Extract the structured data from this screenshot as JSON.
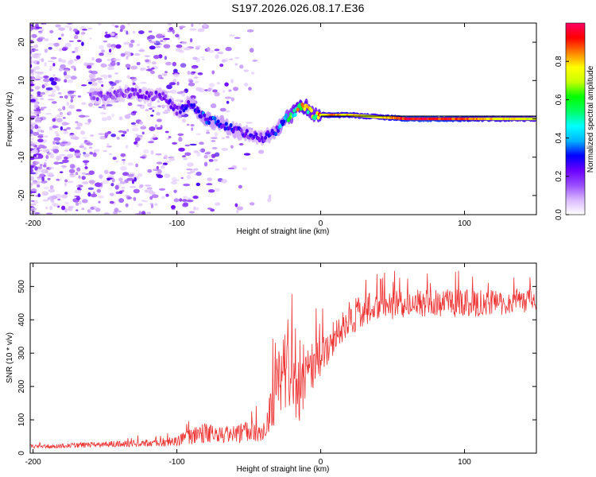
{
  "figure": {
    "title": "S197.2026.026.08.17.E36"
  },
  "chart_data": [
    {
      "type": "heatmap",
      "xlabel": "Height of straight line (km)",
      "ylabel": "Frequency (Hz)",
      "xlim": [
        -202,
        150
      ],
      "ylim": [
        -25,
        25
      ],
      "xticks": [
        -200,
        -100,
        0,
        100
      ],
      "yticks": [
        -20,
        -10,
        0,
        10,
        20
      ],
      "colorbar": {
        "label": "Normalized spectral amplitude",
        "range": [
          0,
          1
        ],
        "ticks": [
          0.0,
          0.2,
          0.4,
          0.6,
          0.8
        ],
        "colormap": [
          "#ffffff",
          "#d9b8ff",
          "#9a4dff",
          "#6a00ff",
          "#0000ff",
          "#00b4ff",
          "#00ffff",
          "#00ff66",
          "#00ff00",
          "#c8ff00",
          "#ffff00",
          "#ff8000",
          "#ff0000",
          "#ff0066"
        ]
      },
      "ridge": {
        "description_points_x": [
          -150,
          -130,
          -120,
          -110,
          -100,
          -90,
          -80,
          -70,
          -60,
          -50,
          -40,
          -35,
          -30,
          -25,
          -20,
          -15,
          -10,
          -5,
          0,
          10,
          20,
          40,
          60,
          80,
          100,
          120,
          150
        ],
        "frequency_y": [
          6,
          7,
          6,
          6,
          2,
          4,
          0,
          -1,
          -3,
          -4,
          -5,
          -4,
          -3,
          0,
          1,
          3,
          3,
          1,
          1,
          1,
          1,
          0.5,
          0,
          0,
          0,
          0,
          0
        ],
        "amplitude": [
          0.15,
          0.18,
          0.18,
          0.2,
          0.22,
          0.25,
          0.3,
          0.28,
          0.25,
          0.22,
          0.22,
          0.25,
          0.3,
          0.4,
          0.55,
          0.7,
          0.7,
          0.6,
          0.75,
          0.85,
          0.8,
          0.75,
          0.95,
          0.95,
          0.9,
          0.8,
          0.75
        ]
      }
    },
    {
      "type": "line",
      "xlabel": "Height of straight line (km)",
      "ylabel": "SNR (10 * v/v)",
      "xlim": [
        -202,
        150
      ],
      "ylim": [
        0,
        570
      ],
      "xticks": [
        -200,
        -100,
        0,
        100
      ],
      "yticks": [
        0,
        100,
        200,
        300,
        400,
        500
      ],
      "series": [
        {
          "name": "SNR",
          "color": "#ee3333",
          "envelope_x": [
            -202,
            -180,
            -160,
            -140,
            -120,
            -100,
            -90,
            -80,
            -70,
            -60,
            -50,
            -40,
            -35,
            -30,
            -25,
            -20,
            -15,
            -10,
            0,
            10,
            20,
            30,
            40,
            60,
            80,
            100,
            120,
            150
          ],
          "envelope_mean": [
            20,
            22,
            25,
            28,
            30,
            35,
            50,
            60,
            55,
            55,
            70,
            60,
            120,
            200,
            250,
            200,
            180,
            230,
            300,
            360,
            400,
            430,
            440,
            450,
            450,
            450,
            450,
            460
          ],
          "envelope_amp": [
            10,
            12,
            14,
            16,
            18,
            25,
            45,
            50,
            40,
            45,
            60,
            50,
            100,
            160,
            180,
            200,
            150,
            120,
            110,
            100,
            90,
            80,
            80,
            70,
            70,
            70,
            65,
            60
          ]
        }
      ]
    }
  ]
}
